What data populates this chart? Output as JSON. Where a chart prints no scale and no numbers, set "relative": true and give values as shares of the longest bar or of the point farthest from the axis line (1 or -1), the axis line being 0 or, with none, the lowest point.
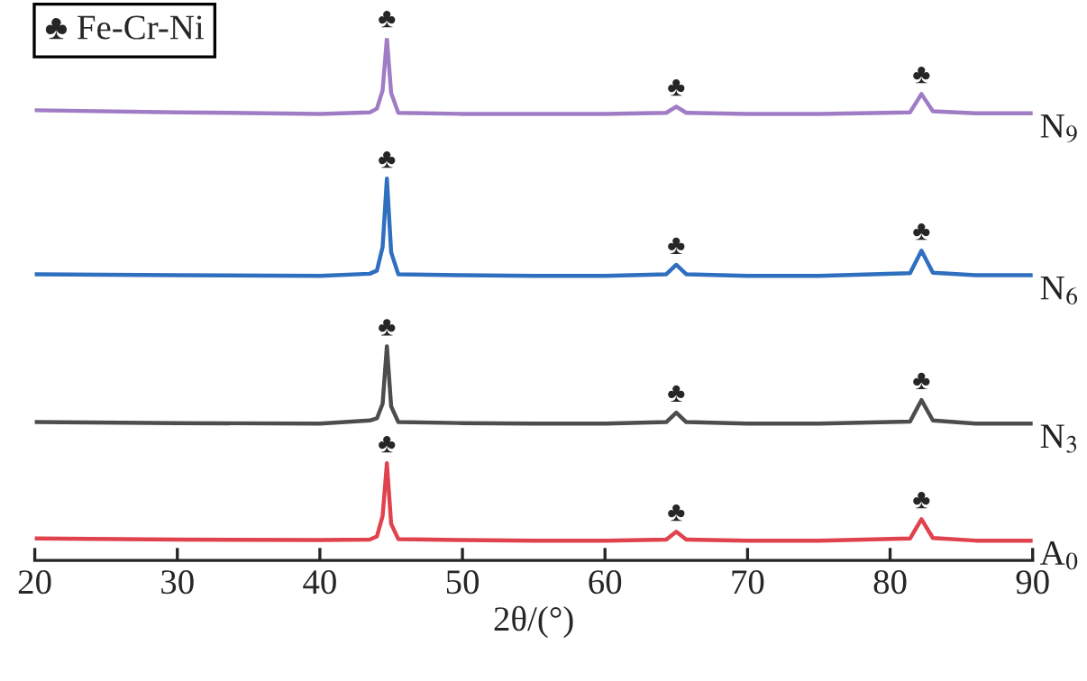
{
  "chart_data": {
    "type": "line",
    "relative": true,
    "xlabel": "2θ/(°)",
    "x": [
      20,
      30,
      40,
      43.5,
      44.0,
      44.4,
      44.7,
      45.0,
      45.5,
      50,
      55,
      60,
      64.3,
      65.0,
      65.7,
      70,
      75,
      81.4,
      82.2,
      83.0,
      86,
      90
    ],
    "xlim": [
      20,
      90
    ],
    "xticks": [
      20,
      30,
      40,
      50,
      60,
      70,
      80,
      90
    ],
    "tick_labels": "x",
    "grid": false,
    "series": [
      {
        "name": "A$_{0}$",
        "color": "#e0434d",
        "values": [
          0.042,
          0.04,
          0.039,
          0.04,
          0.046,
          0.085,
          0.186,
          0.07,
          0.041,
          0.039,
          0.038,
          0.038,
          0.04,
          0.055,
          0.04,
          0.038,
          0.038,
          0.042,
          0.079,
          0.043,
          0.038,
          0.038
        ]
      },
      {
        "name": "N$_{3}$",
        "color": "#4d4d4d",
        "values": [
          0.265,
          0.263,
          0.262,
          0.268,
          0.272,
          0.3,
          0.41,
          0.295,
          0.265,
          0.263,
          0.262,
          0.262,
          0.265,
          0.283,
          0.265,
          0.262,
          0.262,
          0.266,
          0.307,
          0.268,
          0.262,
          0.262
        ]
      },
      {
        "name": "N$_{6}$",
        "color": "#2f6fbf",
        "values": [
          0.548,
          0.546,
          0.545,
          0.549,
          0.555,
          0.6,
          0.731,
          0.59,
          0.548,
          0.546,
          0.545,
          0.545,
          0.548,
          0.566,
          0.548,
          0.545,
          0.545,
          0.55,
          0.593,
          0.551,
          0.546,
          0.546
        ]
      },
      {
        "name": "N$_{9}$",
        "color": "#a07cc5",
        "values": [
          0.862,
          0.858,
          0.855,
          0.858,
          0.865,
          0.9,
          1.0,
          0.895,
          0.857,
          0.855,
          0.855,
          0.855,
          0.857,
          0.869,
          0.857,
          0.855,
          0.855,
          0.858,
          0.893,
          0.86,
          0.856,
          0.856
        ]
      }
    ],
    "annotations": [
      "♣ Fe-Cr-Ni",
      {
        "text": "♣",
        "x": 44.7,
        "y": 0.186
      },
      {
        "text": "♣",
        "x": 65.0,
        "y": 0.055
      },
      {
        "text": "♣",
        "x": 82.2,
        "y": 0.079
      },
      {
        "text": "♣",
        "x": 44.7,
        "y": 0.41
      },
      {
        "text": "♣",
        "x": 65.0,
        "y": 0.283
      },
      {
        "text": "♣",
        "x": 82.2,
        "y": 0.307
      },
      {
        "text": "♣",
        "x": 44.7,
        "y": 0.731
      },
      {
        "text": "♣",
        "x": 65.0,
        "y": 0.566
      },
      {
        "text": "♣",
        "x": 82.2,
        "y": 0.593
      },
      {
        "text": "♣",
        "x": 44.7,
        "y": 1.0
      },
      {
        "text": "♣",
        "x": 65.0,
        "y": 0.869
      },
      {
        "text": "♣",
        "x": 82.2,
        "y": 0.893
      }
    ]
  }
}
